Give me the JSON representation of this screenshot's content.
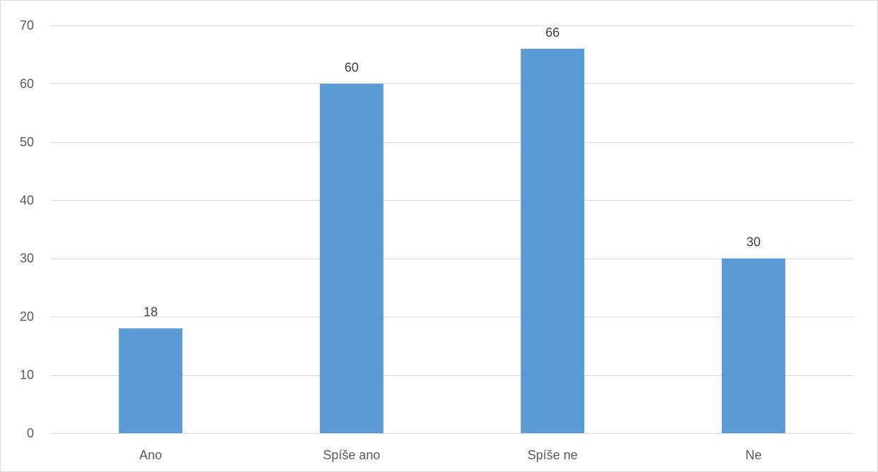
{
  "chart_data": {
    "type": "bar",
    "title": "",
    "xlabel": "",
    "ylabel": "",
    "categories": [
      "Ano",
      "Spíše ano",
      "Spíše ne",
      "Ne"
    ],
    "values": [
      18,
      60,
      66,
      30
    ],
    "data_labels": [
      "18",
      "60",
      "66",
      "30"
    ],
    "ylim": [
      0,
      70
    ],
    "yticks": [
      0,
      10,
      20,
      30,
      40,
      50,
      60,
      70
    ],
    "grid": true,
    "legend": "none",
    "colors": {
      "bar": "#5b9bd5",
      "grid": "#d9d9d9",
      "axis": "#d9d9d9",
      "tick_text": "#595959",
      "label_text": "#404040"
    }
  }
}
